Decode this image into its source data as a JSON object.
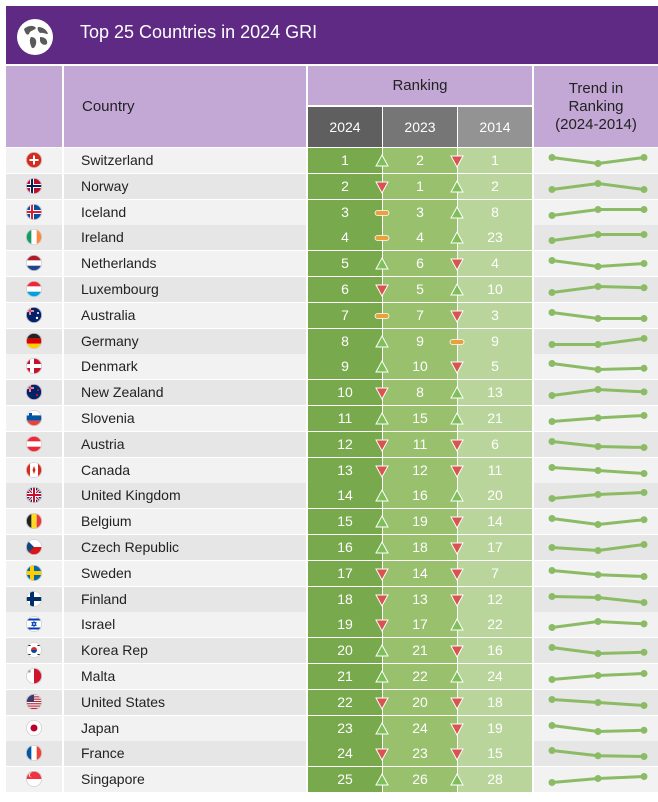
{
  "header": {
    "title": "Top 25 Countries in 2024 GRI",
    "country_label": "Country",
    "ranking_label": "Ranking",
    "trend_label_line1": "Trend in",
    "trend_label_line2": "Ranking",
    "trend_label_line3": "(2024-2014)",
    "years": [
      "2024",
      "2023",
      "2014"
    ]
  },
  "colors": {
    "banner": "#5f2a84",
    "header_bg": "#c3a8d6",
    "rank_2024_bg": "#78a94c",
    "rank_2023_bg": "#98c06d",
    "rank_2014_bg": "#b9d59b",
    "up": "#7fbf5a",
    "down": "#d9534f",
    "same": "#e8a13b",
    "trend_line": "#8cbb66"
  },
  "chart_data": {
    "type": "table",
    "title": "Top 25 Countries in 2024 GRI",
    "columns": [
      "Country",
      "2024",
      "2023",
      "2014",
      "Trend in Ranking (2024-2014)"
    ],
    "rows": [
      {
        "country": "Switzerland",
        "flag": "switzerland-flag-icon",
        "r2024": 1,
        "r2023": 2,
        "r2014": 1
      },
      {
        "country": "Norway",
        "flag": "norway-flag-icon",
        "r2024": 2,
        "r2023": 1,
        "r2014": 2
      },
      {
        "country": "Iceland",
        "flag": "iceland-flag-icon",
        "r2024": 3,
        "r2023": 3,
        "r2014": 8
      },
      {
        "country": "Ireland",
        "flag": "ireland-flag-icon",
        "r2024": 4,
        "r2023": 4,
        "r2014": 23
      },
      {
        "country": "Netherlands",
        "flag": "netherlands-flag-icon",
        "r2024": 5,
        "r2023": 6,
        "r2014": 4
      },
      {
        "country": "Luxembourg",
        "flag": "luxembourg-flag-icon",
        "r2024": 6,
        "r2023": 5,
        "r2014": 10
      },
      {
        "country": "Australia",
        "flag": "australia-flag-icon",
        "r2024": 7,
        "r2023": 7,
        "r2014": 3
      },
      {
        "country": "Germany",
        "flag": "germany-flag-icon",
        "r2024": 8,
        "r2023": 9,
        "r2014": 9
      },
      {
        "country": "Denmark",
        "flag": "denmark-flag-icon",
        "r2024": 9,
        "r2023": 10,
        "r2014": 5
      },
      {
        "country": "New Zealand",
        "flag": "new-zealand-flag-icon",
        "r2024": 10,
        "r2023": 8,
        "r2014": 13
      },
      {
        "country": "Slovenia",
        "flag": "slovenia-flag-icon",
        "r2024": 11,
        "r2023": 15,
        "r2014": 21
      },
      {
        "country": "Austria",
        "flag": "austria-flag-icon",
        "r2024": 12,
        "r2023": 11,
        "r2014": 6
      },
      {
        "country": "Canada",
        "flag": "canada-flag-icon",
        "r2024": 13,
        "r2023": 12,
        "r2014": 11
      },
      {
        "country": "United Kingdom",
        "flag": "united-kingdom-flag-icon",
        "r2024": 14,
        "r2023": 16,
        "r2014": 20
      },
      {
        "country": "Belgium",
        "flag": "belgium-flag-icon",
        "r2024": 15,
        "r2023": 19,
        "r2014": 14
      },
      {
        "country": "Czech Republic",
        "flag": "czech-republic-flag-icon",
        "r2024": 16,
        "r2023": 18,
        "r2014": 17
      },
      {
        "country": "Sweden",
        "flag": "sweden-flag-icon",
        "r2024": 17,
        "r2023": 14,
        "r2014": 7
      },
      {
        "country": "Finland",
        "flag": "finland-flag-icon",
        "r2024": 18,
        "r2023": 13,
        "r2014": 12
      },
      {
        "country": "Israel",
        "flag": "israel-flag-icon",
        "r2024": 19,
        "r2023": 17,
        "r2014": 22
      },
      {
        "country": "Korea Rep",
        "flag": "korea-flag-icon",
        "r2024": 20,
        "r2023": 21,
        "r2014": 16
      },
      {
        "country": "Malta",
        "flag": "malta-flag-icon",
        "r2024": 21,
        "r2023": 22,
        "r2014": 24
      },
      {
        "country": "United States",
        "flag": "united-states-flag-icon",
        "r2024": 22,
        "r2023": 20,
        "r2014": 18
      },
      {
        "country": "Japan",
        "flag": "japan-flag-icon",
        "r2024": 23,
        "r2023": 24,
        "r2014": 19
      },
      {
        "country": "France",
        "flag": "france-flag-icon",
        "r2024": 24,
        "r2023": 23,
        "r2014": 15
      },
      {
        "country": "Singapore",
        "flag": "singapore-flag-icon",
        "r2024": 25,
        "r2023": 26,
        "r2014": 28
      }
    ]
  }
}
